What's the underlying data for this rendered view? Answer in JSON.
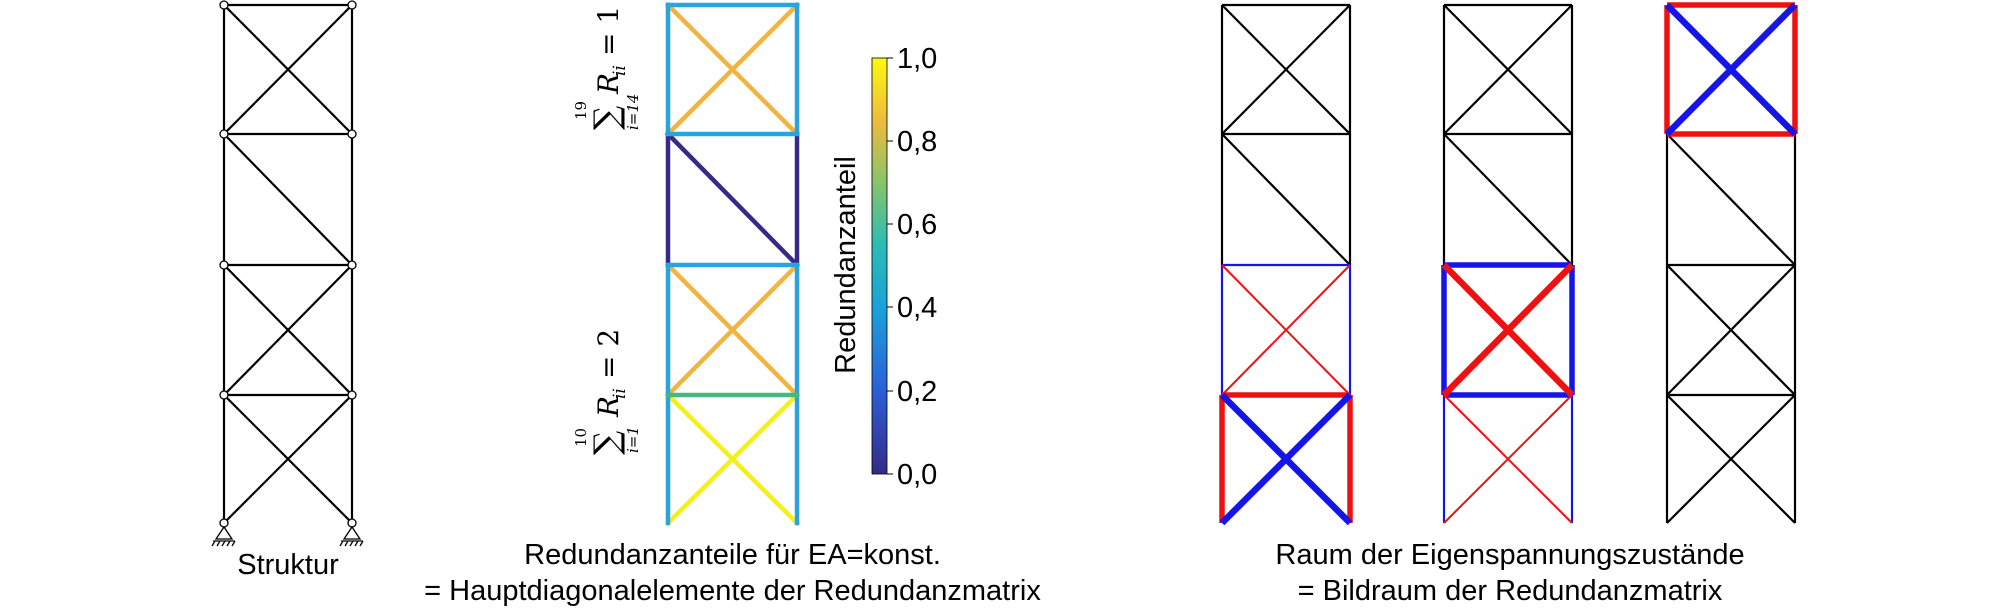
{
  "captions": {
    "structure": "Struktur",
    "redundancy_line1": "Redundanzanteile für EA=konst.",
    "redundancy_line2": "= Hauptdiagonalelemente der Redundanzmatrix",
    "eigen_line1": "Raum der Eigenspannungszustände",
    "eigen_line2": "= Bildraum der Redundanzmatrix"
  },
  "sum_labels": {
    "upper": {
      "upper_limit": "19",
      "lower_limit": "i=14",
      "expr": "R",
      "sub": "ii",
      "rhs": "= 1"
    },
    "lower": {
      "upper_limit": "10",
      "lower_limit": "i=1",
      "expr": "R",
      "sub": "ii",
      "rhs": "= 2"
    }
  },
  "colorbar": {
    "title": "Redundanzanteil",
    "ticks": [
      "1,0",
      "0,8",
      "0,6",
      "0,4",
      "0,2",
      "0,0"
    ],
    "range": [
      0.0,
      1.0
    ],
    "colors": [
      "#352a87",
      "#2c5fd8",
      "#1db8d3",
      "#4ac585",
      "#f3b934",
      "#f9fb0e"
    ]
  },
  "redundancy_members": {
    "panel4_top_cross": "#f2b441",
    "panel4_posts": "#2aa4dc",
    "panel3_diag": "#352a87",
    "panel2_cross": "#f2b441",
    "chord_2_3": "#2aa4dc",
    "chord_1_2": "#43b981",
    "panel1_cross": "#f4f01c"
  },
  "eigen_colors": {
    "positive": "#ee1111",
    "negative": "#1515e8",
    "neutral": "#000000"
  }
}
